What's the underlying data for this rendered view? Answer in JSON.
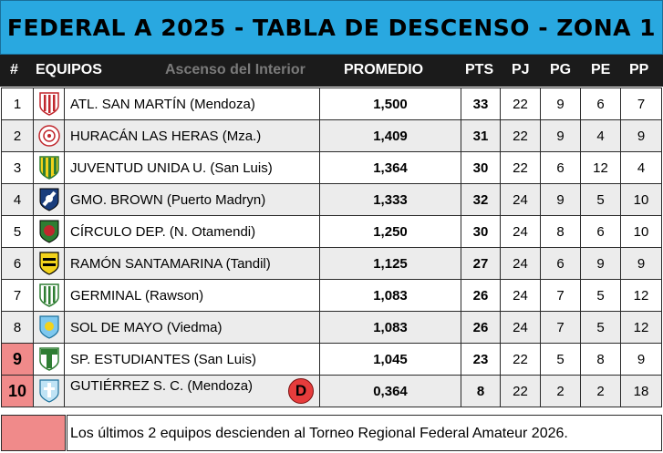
{
  "title": "FEDERAL A 2025 - TABLA DE DESCENSO - ZONA 1",
  "columns": {
    "pos": "#",
    "team": "EQUIPOS",
    "watermark": "Ascenso del Interior",
    "promedio": "PROMEDIO",
    "pts": "PTS",
    "pj": "PJ",
    "pg": "PG",
    "pe": "PE",
    "pp": "PP"
  },
  "rows": [
    {
      "pos": "1",
      "team": "ATL. SAN MARTÍN (Mendoza)",
      "promedio": "1,500",
      "pts": "33",
      "pj": "22",
      "pg": "9",
      "pe": "6",
      "pp": "7"
    },
    {
      "pos": "2",
      "team": "HURACÁN LAS HERAS (Mza.)",
      "promedio": "1,409",
      "pts": "31",
      "pj": "22",
      "pg": "9",
      "pe": "4",
      "pp": "9"
    },
    {
      "pos": "3",
      "team": "JUVENTUD UNIDA U. (San Luis)",
      "promedio": "1,364",
      "pts": "30",
      "pj": "22",
      "pg": "6",
      "pe": "12",
      "pp": "4"
    },
    {
      "pos": "4",
      "team": "GMO. BROWN (Puerto Madryn)",
      "promedio": "1,333",
      "pts": "32",
      "pj": "24",
      "pg": "9",
      "pe": "5",
      "pp": "10"
    },
    {
      "pos": "5",
      "team": "CÍRCULO DEP. (N. Otamendi)",
      "promedio": "1,250",
      "pts": "30",
      "pj": "24",
      "pg": "8",
      "pe": "6",
      "pp": "10"
    },
    {
      "pos": "6",
      "team": "RAMÓN SANTAMARINA (Tandil)",
      "promedio": "1,125",
      "pts": "27",
      "pj": "24",
      "pg": "6",
      "pe": "9",
      "pp": "9"
    },
    {
      "pos": "7",
      "team": "GERMINAL (Rawson)",
      "promedio": "1,083",
      "pts": "26",
      "pj": "24",
      "pg": "7",
      "pe": "5",
      "pp": "12"
    },
    {
      "pos": "8",
      "team": "SOL DE MAYO (Viedma)",
      "promedio": "1,083",
      "pts": "26",
      "pj": "24",
      "pg": "7",
      "pe": "5",
      "pp": "12"
    },
    {
      "pos": "9",
      "team": "SP. ESTUDIANTES (San Luis)",
      "promedio": "1,045",
      "pts": "23",
      "pj": "22",
      "pg": "5",
      "pe": "8",
      "pp": "9"
    },
    {
      "pos": "10",
      "team": "GUTIÉRREZ S. C. (Mendoza)",
      "promedio": "0,364",
      "pts": "8",
      "pj": "22",
      "pg": "2",
      "pe": "2",
      "pp": "18",
      "badge": "D"
    }
  ],
  "footer_note": "Los últimos 2 equipos descienden al Torneo Regional Federal Amateur 2026.",
  "colors": {
    "title_bg": "#29a8e0",
    "header_bg": "#1b1b1b",
    "relegation": "#f08a8a",
    "descended_badge": "#e63c3c"
  },
  "icons": [
    "san-martin-crest-icon",
    "huracan-las-heras-crest-icon",
    "juventud-unida-crest-icon",
    "brown-madryn-crest-icon",
    "circulo-deportivo-crest-icon",
    "santamarina-crest-icon",
    "germinal-crest-icon",
    "sol-de-mayo-crest-icon",
    "estudiantes-san-luis-crest-icon",
    "gutierrez-crest-icon"
  ]
}
